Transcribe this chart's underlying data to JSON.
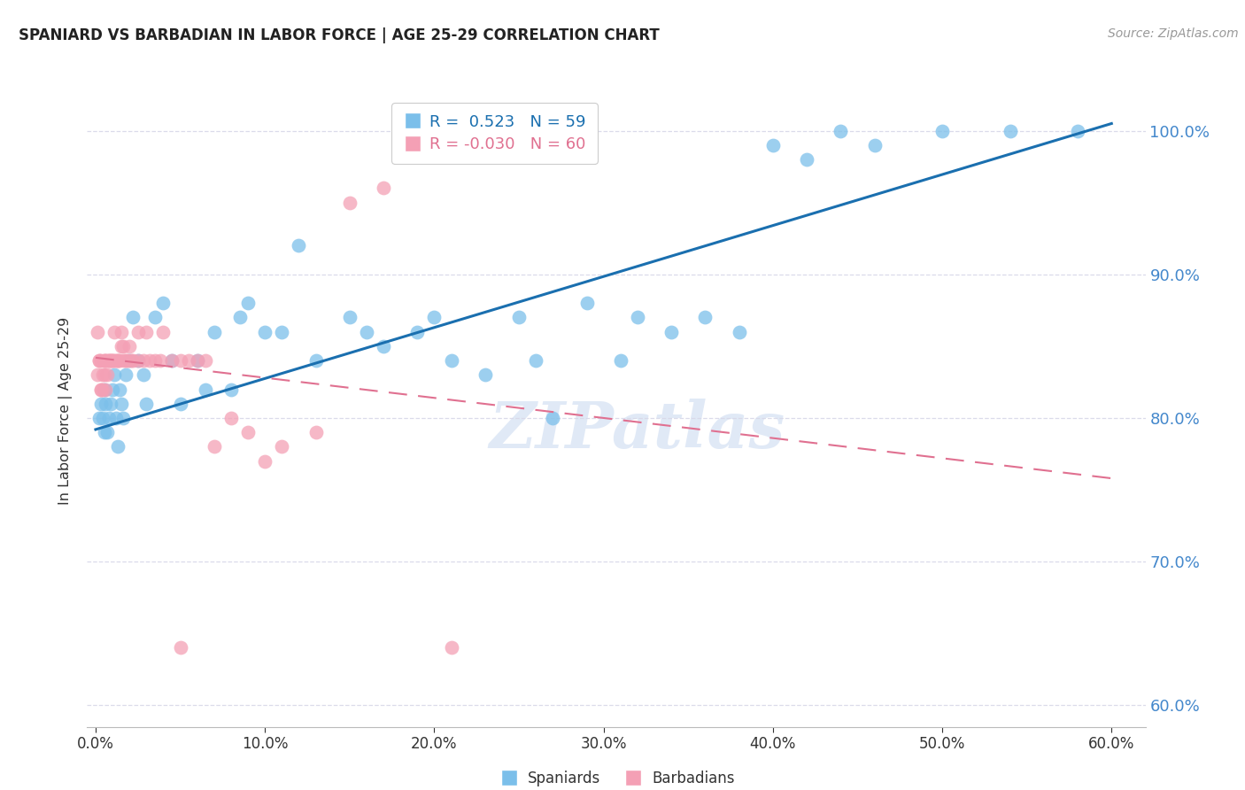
{
  "title": "SPANIARD VS BARBADIAN IN LABOR FORCE | AGE 25-29 CORRELATION CHART",
  "source": "Source: ZipAtlas.com",
  "ylabel": "In Labor Force | Age 25-29",
  "legend_blue_label": "Spaniards",
  "legend_pink_label": "Barbadians",
  "R_blue": 0.523,
  "N_blue": 59,
  "R_pink": -0.03,
  "N_pink": 60,
  "xlim": [
    -0.005,
    0.62
  ],
  "ylim": [
    0.585,
    1.025
  ],
  "yticks": [
    0.6,
    0.7,
    0.8,
    0.9,
    1.0
  ],
  "xticks": [
    0.0,
    0.1,
    0.2,
    0.3,
    0.4,
    0.5,
    0.6
  ],
  "blue_color": "#7bbfea",
  "pink_color": "#f4a0b5",
  "trend_blue_color": "#1a6faf",
  "trend_pink_color": "#e07090",
  "blue_x": [
    0.002,
    0.003,
    0.004,
    0.005,
    0.005,
    0.006,
    0.007,
    0.008,
    0.009,
    0.01,
    0.011,
    0.012,
    0.013,
    0.014,
    0.015,
    0.016,
    0.018,
    0.02,
    0.022,
    0.025,
    0.028,
    0.03,
    0.035,
    0.04,
    0.045,
    0.05,
    0.06,
    0.065,
    0.07,
    0.08,
    0.085,
    0.09,
    0.1,
    0.11,
    0.12,
    0.13,
    0.15,
    0.16,
    0.17,
    0.19,
    0.2,
    0.21,
    0.23,
    0.25,
    0.26,
    0.27,
    0.29,
    0.31,
    0.32,
    0.34,
    0.36,
    0.38,
    0.4,
    0.42,
    0.44,
    0.46,
    0.5,
    0.54,
    0.58
  ],
  "blue_y": [
    0.8,
    0.81,
    0.8,
    0.82,
    0.79,
    0.81,
    0.79,
    0.8,
    0.81,
    0.82,
    0.83,
    0.8,
    0.78,
    0.82,
    0.81,
    0.8,
    0.83,
    0.84,
    0.87,
    0.84,
    0.83,
    0.81,
    0.87,
    0.88,
    0.84,
    0.81,
    0.84,
    0.82,
    0.86,
    0.82,
    0.87,
    0.88,
    0.86,
    0.86,
    0.92,
    0.84,
    0.87,
    0.86,
    0.85,
    0.86,
    0.87,
    0.84,
    0.83,
    0.87,
    0.84,
    0.8,
    0.88,
    0.84,
    0.87,
    0.86,
    0.87,
    0.86,
    0.99,
    0.98,
    1.0,
    0.99,
    1.0,
    1.0,
    1.0
  ],
  "pink_x": [
    0.001,
    0.001,
    0.002,
    0.002,
    0.003,
    0.003,
    0.003,
    0.004,
    0.004,
    0.005,
    0.005,
    0.005,
    0.006,
    0.006,
    0.007,
    0.007,
    0.008,
    0.008,
    0.009,
    0.009,
    0.01,
    0.01,
    0.011,
    0.011,
    0.012,
    0.013,
    0.013,
    0.014,
    0.015,
    0.015,
    0.016,
    0.017,
    0.018,
    0.019,
    0.02,
    0.021,
    0.022,
    0.025,
    0.025,
    0.028,
    0.03,
    0.032,
    0.035,
    0.038,
    0.04,
    0.045,
    0.05,
    0.055,
    0.06,
    0.065,
    0.07,
    0.08,
    0.09,
    0.1,
    0.11,
    0.13,
    0.15,
    0.17,
    0.21,
    0.05
  ],
  "pink_y": [
    0.83,
    0.86,
    0.84,
    0.84,
    0.82,
    0.84,
    0.82,
    0.83,
    0.82,
    0.84,
    0.84,
    0.83,
    0.84,
    0.82,
    0.83,
    0.84,
    0.84,
    0.84,
    0.84,
    0.84,
    0.84,
    0.84,
    0.86,
    0.84,
    0.84,
    0.84,
    0.84,
    0.84,
    0.85,
    0.86,
    0.85,
    0.84,
    0.84,
    0.84,
    0.85,
    0.84,
    0.84,
    0.84,
    0.86,
    0.84,
    0.86,
    0.84,
    0.84,
    0.84,
    0.86,
    0.84,
    0.84,
    0.84,
    0.84,
    0.84,
    0.78,
    0.8,
    0.79,
    0.77,
    0.78,
    0.79,
    0.95,
    0.96,
    0.64,
    0.64
  ],
  "trend_blue_x0": 0.0,
  "trend_blue_y0": 0.792,
  "trend_blue_x1": 0.6,
  "trend_blue_y1": 1.005,
  "trend_pink_x0": 0.0,
  "trend_pink_y0": 0.842,
  "trend_pink_x1": 0.6,
  "trend_pink_y1": 0.758,
  "watermark_text": "ZIPatlas",
  "background_color": "#ffffff",
  "grid_color": "#d8d8e8",
  "right_tick_color": "#4488cc",
  "bottom_tick_color": "#333333"
}
